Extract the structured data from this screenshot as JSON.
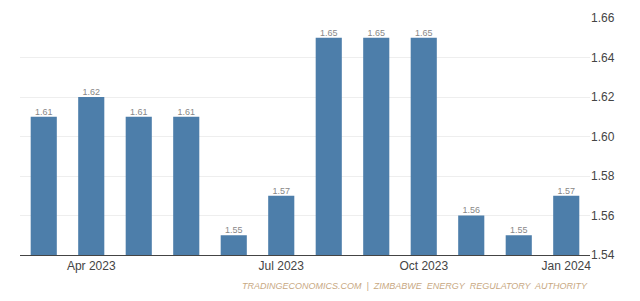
{
  "chart_data": {
    "type": "bar",
    "categories": [
      null,
      "Apr 2023",
      null,
      null,
      null,
      "Jul 2023",
      null,
      null,
      "Oct 2023",
      null,
      null,
      "Jan 2024"
    ],
    "values": [
      1.61,
      1.62,
      1.61,
      1.61,
      1.55,
      1.57,
      1.65,
      1.65,
      1.65,
      1.56,
      1.55,
      1.57
    ],
    "color": "#4d7eaa",
    "ylim": [
      1.54,
      1.66
    ],
    "yticks": [
      1.54,
      1.56,
      1.58,
      {
        "value": 1.6,
        "label": "1.60"
      },
      1.62,
      1.64,
      1.66
    ],
    "grid": true,
    "data_labels": true,
    "annotations": [
      {
        "text": "TRADINGECONOMICS.COM  |  ZIMBABWE  ENERGY  REGULATORY  AUTHORITY"
      }
    ]
  }
}
